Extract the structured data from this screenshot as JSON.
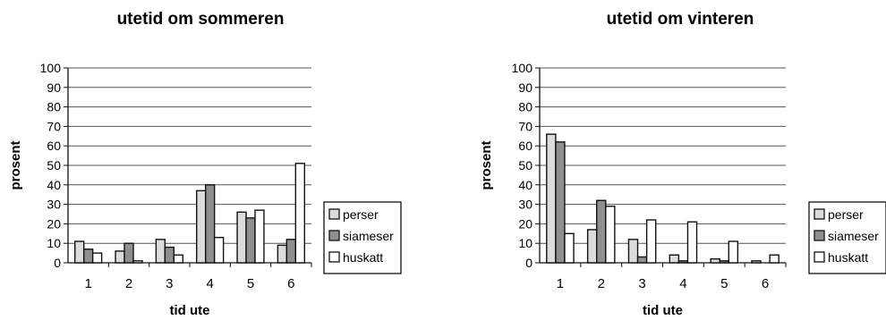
{
  "chart_data": [
    {
      "type": "bar",
      "title": "utetid om sommeren",
      "xlabel": "tid ute",
      "ylabel": "prosent",
      "ylim": [
        0,
        100
      ],
      "yticks": [
        "0",
        "10",
        "20",
        "30",
        "40",
        "50",
        "60",
        "70",
        "80",
        "90",
        "100"
      ],
      "categories": [
        "1",
        "2",
        "3",
        "4",
        "5",
        "6"
      ],
      "grid": true,
      "legend_position": "right",
      "series": [
        {
          "name": "perser",
          "values": [
            11,
            6,
            12,
            37,
            26,
            9
          ],
          "color": "#dcdcdc"
        },
        {
          "name": "siameser",
          "values": [
            7,
            10,
            8,
            40,
            23,
            12
          ],
          "color": "#8f8f8f"
        },
        {
          "name": "huskatt",
          "values": [
            5,
            1,
            4,
            13,
            27,
            51
          ],
          "color": "#ffffff"
        }
      ]
    },
    {
      "type": "bar",
      "title": "utetid om vinteren",
      "xlabel": "tid ute",
      "ylabel": "prosent",
      "ylim": [
        0,
        100
      ],
      "yticks": [
        "0",
        "10",
        "20",
        "30",
        "40",
        "50",
        "60",
        "70",
        "80",
        "90",
        "100"
      ],
      "categories": [
        "1",
        "2",
        "3",
        "4",
        "5",
        "6"
      ],
      "grid": true,
      "legend_position": "right",
      "series": [
        {
          "name": "perser",
          "values": [
            66,
            17,
            12,
            4,
            2,
            1
          ],
          "color": "#dcdcdc"
        },
        {
          "name": "siameser",
          "values": [
            62,
            32,
            3,
            1,
            1,
            0
          ],
          "color": "#8f8f8f"
        },
        {
          "name": "huskatt",
          "values": [
            15,
            29,
            22,
            21,
            11,
            4
          ],
          "color": "#ffffff"
        }
      ]
    }
  ]
}
